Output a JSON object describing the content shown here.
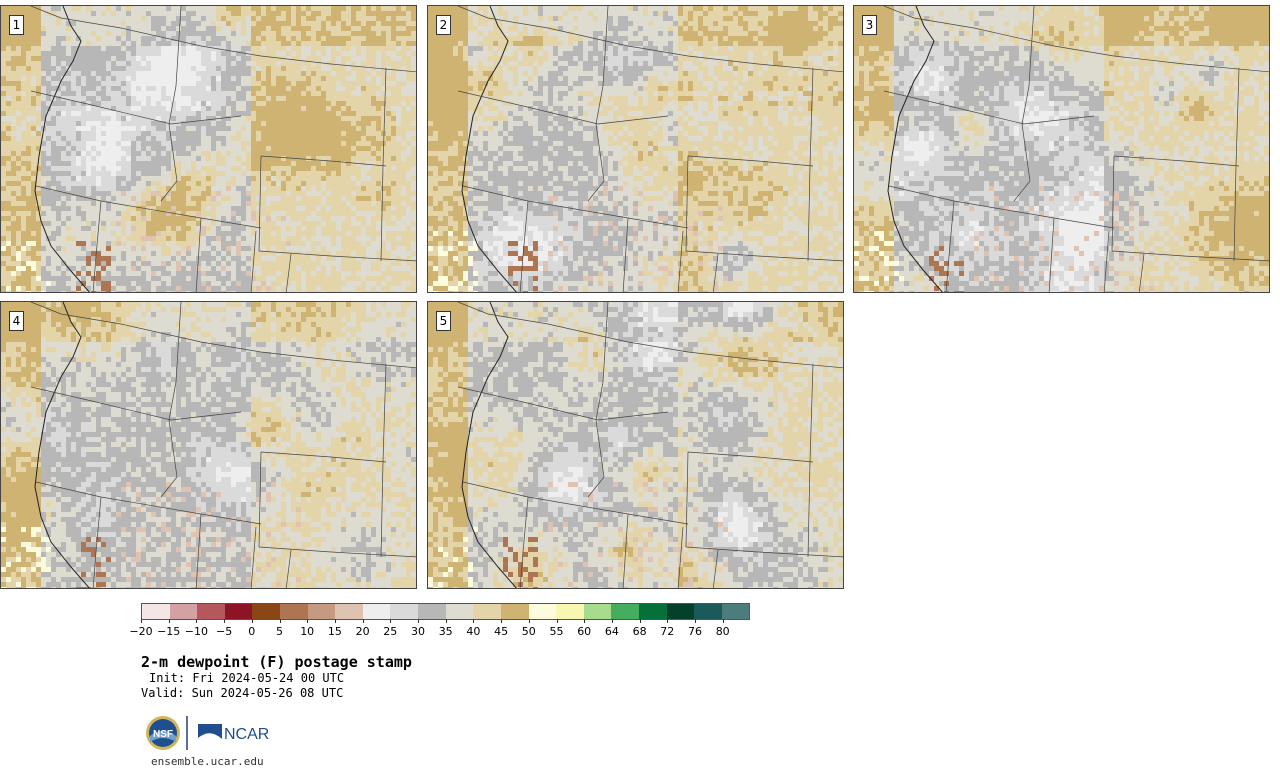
{
  "panels": [
    {
      "number": "1"
    },
    {
      "number": "2"
    },
    {
      "number": "3"
    },
    {
      "number": "4"
    },
    {
      "number": "5"
    }
  ],
  "colorbar": {
    "colors": [
      "#f4e6e6",
      "#d4a0a4",
      "#b5585e",
      "#8c1424",
      "#8a4614",
      "#ad7551",
      "#c49a80",
      "#dec2b2",
      "#eeeeee",
      "#dadada",
      "#b7b7b7",
      "#dedbd0",
      "#e3d4aa",
      "#cfb373",
      "#fdfbde",
      "#f8f7b2",
      "#a7db8d",
      "#44ae5e",
      "#05703a",
      "#04402a",
      "#1a5a5a",
      "#4c7c7c"
    ],
    "labels": [
      "−20",
      "−15",
      "−10",
      "−5",
      "0",
      "5",
      "10",
      "15",
      "20",
      "25",
      "30",
      "35",
      "40",
      "45",
      "50",
      "55",
      "60",
      "64",
      "68",
      "72",
      "76",
      "80"
    ]
  },
  "title": "2-m dewpoint (F) postage stamp",
  "init": "Init: Fri 2024-05-24 00 UTC",
  "valid": "Valid: Sun 2024-05-26 08 UTC",
  "logos": {
    "left": "NSF",
    "right": "NCAR"
  },
  "footer_url": "ensemble.ucar.edu"
}
